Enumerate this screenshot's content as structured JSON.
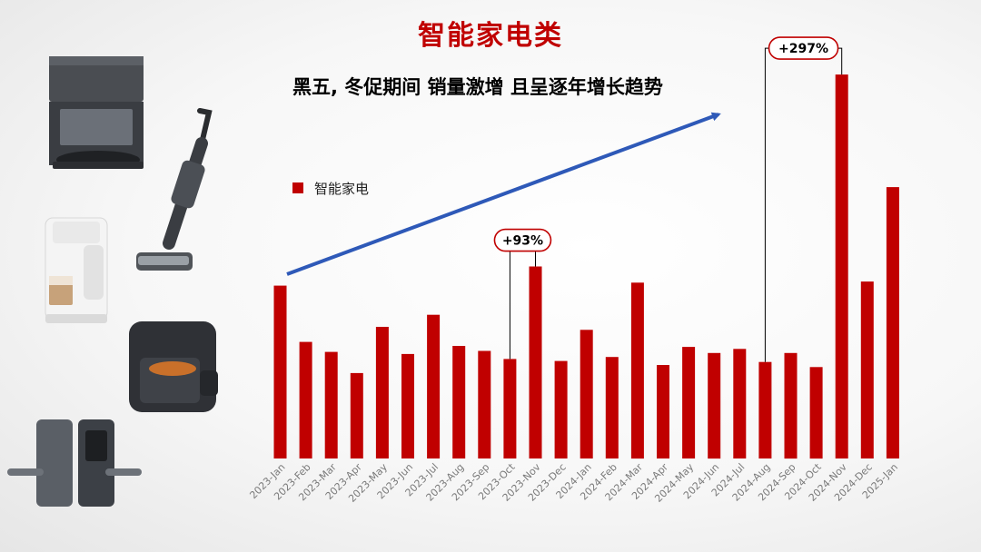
{
  "title": "智能家电类",
  "subtitle": "黑五, 冬促期间 销量激增  且呈逐年增长趋势",
  "colors": {
    "bar": "#c00000",
    "title": "#c00000",
    "trend_arrow": "#2e59b8"
  },
  "products": [
    {
      "icon": "robot-vacuum-station-icon"
    },
    {
      "icon": "wet-dry-vacuum-icon"
    },
    {
      "icon": "coffee-machine-icon"
    },
    {
      "icon": "air-fryer-icon"
    },
    {
      "icon": "smart-door-lock-icon"
    }
  ],
  "chart_data": {
    "type": "bar",
    "legend": {
      "label": "智能家电",
      "position": "top-left"
    },
    "categories": [
      "2023-Jan",
      "2023-Feb",
      "2023-Mar",
      "2023-Apr",
      "2023-May",
      "2023-Jun",
      "2023-Jul",
      "2023-Aug",
      "2023-Sep",
      "2023-Oct",
      "2023-Nov",
      "2023-Dec",
      "2024-Jan",
      "2024-Feb",
      "2024-Mar",
      "2024-Apr",
      "2024-May",
      "2024-Jun",
      "2024-Jul",
      "2024-Aug",
      "2024-Sep",
      "2024-Oct",
      "2024-Nov",
      "2024-Dec",
      "2025-Jan"
    ],
    "values": [
      172,
      116,
      106,
      85,
      131,
      104,
      143,
      112,
      107,
      99,
      191,
      97,
      128,
      101,
      175,
      93,
      111,
      105,
      109,
      96,
      105,
      91,
      382,
      176,
      270
    ],
    "ylim": [
      0,
      420
    ],
    "grid": false,
    "annotations": [
      {
        "text": "+93%",
        "from": "2023-Oct",
        "to": "2023-Nov"
      },
      {
        "text": "+297%",
        "from": "2024-Aug",
        "to": "2024-Nov"
      }
    ],
    "trend_arrow": true
  }
}
